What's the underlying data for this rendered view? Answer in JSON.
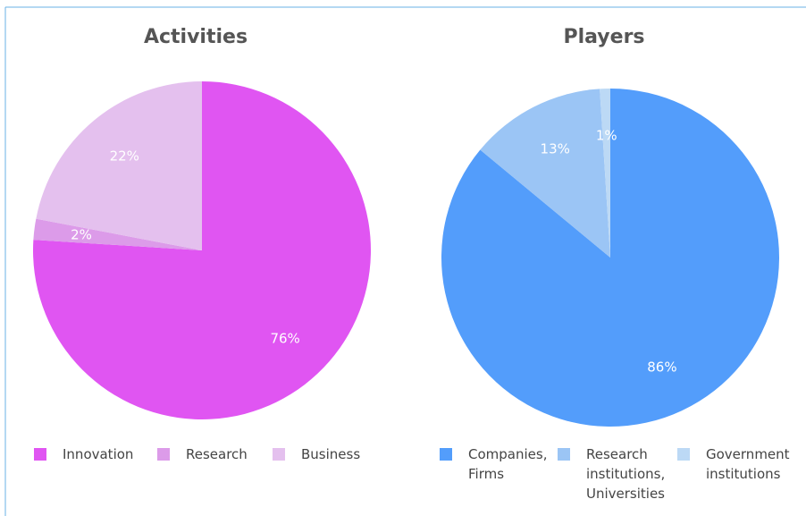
{
  "chart_data": [
    {
      "type": "pie",
      "title": "Activities",
      "categories": [
        "Innovation",
        "Research",
        "Business"
      ],
      "values": [
        76,
        2,
        22
      ],
      "value_labels": [
        "76%",
        "2%",
        "22%"
      ],
      "colors": [
        "#e055f2",
        "#dc9be9",
        "#e4c0ee"
      ]
    },
    {
      "type": "pie",
      "title": "Players",
      "categories": [
        "Companies, Firms",
        "Research institutions, Universities",
        "Government institutions"
      ],
      "values": [
        86,
        13,
        1
      ],
      "value_labels": [
        "86%",
        "13%",
        "1%"
      ],
      "colors": [
        "#539dfb",
        "#9bc5f5",
        "#bcd9f5"
      ]
    }
  ]
}
